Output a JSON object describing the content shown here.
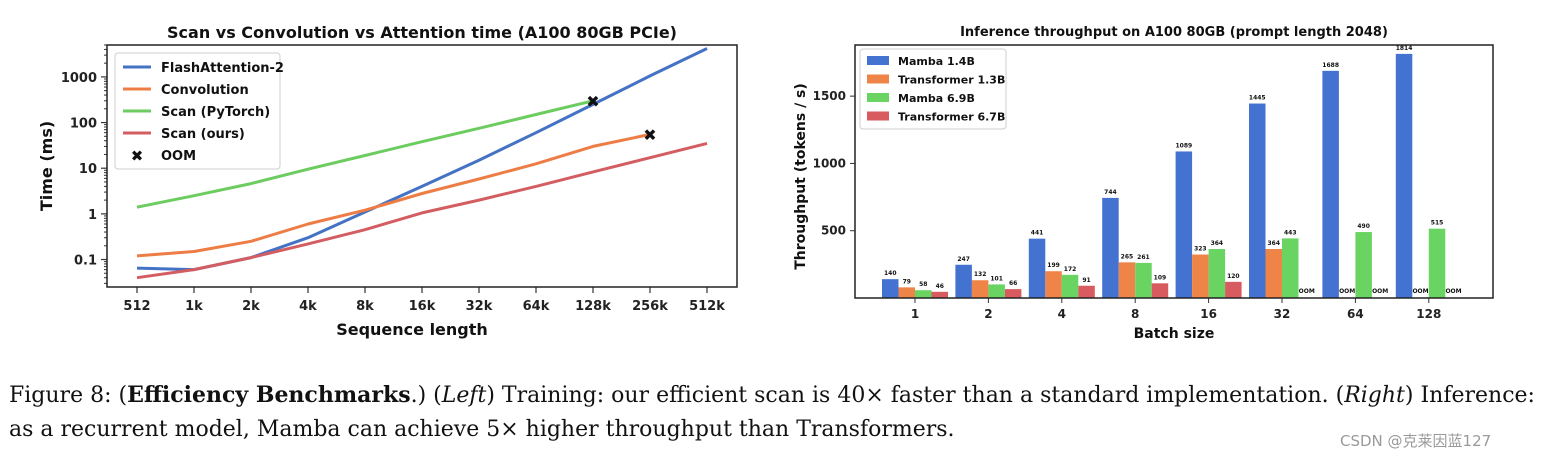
{
  "chart_data": [
    {
      "type": "line",
      "title": "Scan vs Convolution vs Attention time (A100 80GB PCIe)",
      "xlabel": "Sequence length",
      "ylabel": "Time (ms)",
      "yscale": "log",
      "ylim": [
        0.025,
        5000
      ],
      "categories": [
        "512",
        "1k",
        "2k",
        "4k",
        "8k",
        "16k",
        "32k",
        "64k",
        "128k",
        "256k",
        "512k"
      ],
      "yticks": [
        0.1,
        1,
        10,
        100,
        1000
      ],
      "ytick_labels": [
        "0.1",
        "1",
        "10",
        "100",
        "1000"
      ],
      "legend_position": "top-left",
      "series": [
        {
          "name": "FlashAttention-2",
          "color": "#4472c4",
          "values": [
            0.065,
            0.06,
            0.11,
            0.3,
            1.1,
            4.0,
            15,
            60,
            250,
            1050,
            4200
          ]
        },
        {
          "name": "Convolution",
          "color": "#ed7d45",
          "values": [
            0.12,
            0.15,
            0.25,
            0.6,
            1.2,
            2.8,
            5.8,
            12.5,
            30,
            55,
            null
          ]
        },
        {
          "name": "Scan (PyTorch)",
          "color": "#6ccc5f",
          "values": [
            1.4,
            2.5,
            4.6,
            9.5,
            19,
            38,
            75,
            150,
            300,
            null,
            null
          ]
        },
        {
          "name": "Scan (ours)",
          "color": "#d45d62",
          "values": [
            0.04,
            0.06,
            0.11,
            0.22,
            0.45,
            1.05,
            2.0,
            4.0,
            8.3,
            17,
            35
          ]
        }
      ],
      "oom": {
        "name": "OOM",
        "marker": "✖",
        "points": [
          {
            "category": "128k",
            "value": 300
          },
          {
            "category": "256k",
            "value": 55
          }
        ]
      }
    },
    {
      "type": "bar",
      "title": "Inference throughput on A100 80GB (prompt length 2048)",
      "xlabel": "Batch size",
      "ylabel": "Throughput (tokens / s)",
      "ylim": [
        0,
        1880
      ],
      "yticks": [
        500,
        1000,
        1500
      ],
      "ytick_labels": [
        "500",
        "1000",
        "1500"
      ],
      "categories": [
        "1",
        "2",
        "4",
        "8",
        "16",
        "32",
        "64",
        "128"
      ],
      "legend_position": "top-left",
      "series": [
        {
          "name": "Mamba 1.4B",
          "color": "#4472d0",
          "values": [
            140,
            247,
            441,
            744,
            1089,
            1445,
            1688,
            1814
          ],
          "labels": [
            "140",
            "247",
            "441",
            "744",
            "1089",
            "1445",
            "1688",
            "1814"
          ]
        },
        {
          "name": "Transformer 1.3B",
          "color": "#ee8448",
          "values": [
            79,
            132,
            199,
            265,
            323,
            364,
            null,
            null
          ],
          "labels": [
            "79",
            "132",
            "199",
            "265",
            "323",
            "364",
            "OOM",
            "OOM"
          ]
        },
        {
          "name": "Mamba 6.9B",
          "color": "#6ad462",
          "values": [
            58,
            101,
            172,
            261,
            364,
            443,
            490,
            515
          ],
          "labels": [
            "58",
            "101",
            "172",
            "261",
            "364",
            "443",
            "490",
            "515"
          ]
        },
        {
          "name": "Transformer 6.7B",
          "color": "#d85b5f",
          "values": [
            46,
            66,
            91,
            109,
            120,
            null,
            null,
            null
          ],
          "labels": [
            "46",
            "66",
            "91",
            "109",
            "120",
            "OOM",
            "OOM",
            "OOM"
          ]
        }
      ]
    }
  ],
  "caption": {
    "prefix": "Figure 8: (",
    "bold": "Efficiency Benchmarks",
    "after_bold": ".) (",
    "left_label": "Left",
    "left_text": ") Training: our efficient scan is 40× faster than a standard implementation. (",
    "right_label": "Right",
    "right_text": ") Inference: as a recurrent model, Mamba can achieve 5× higher throughput than Transformers."
  },
  "watermark": "CSDN @克莱因蓝127"
}
